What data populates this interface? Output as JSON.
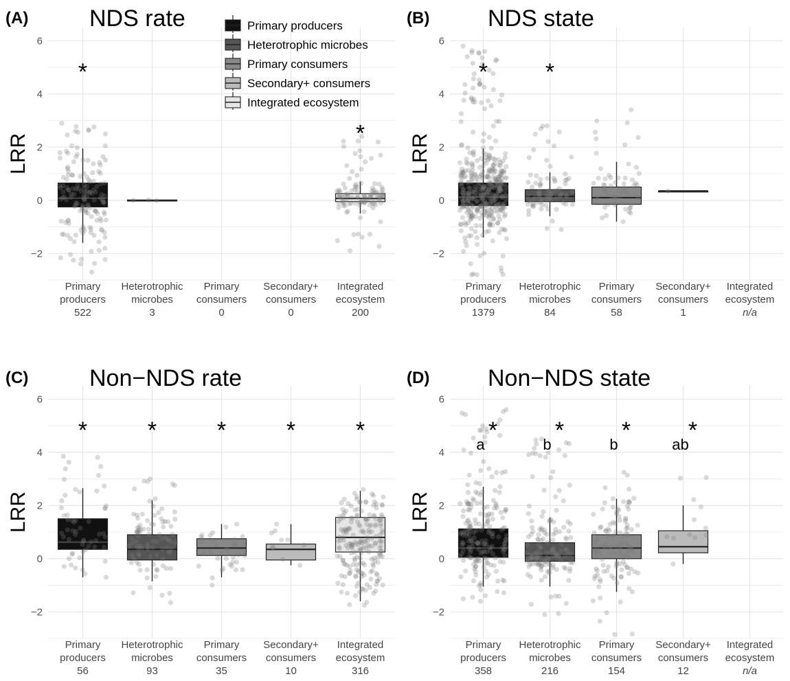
{
  "chart_data": [
    {
      "type": "box",
      "panel_letter": "(A)",
      "title": "NDS rate",
      "ylabel": "LRR",
      "ylim": [
        -3,
        6.5
      ],
      "yticks": [
        -2,
        0,
        2,
        4,
        6
      ],
      "ytick_labels": [
        "−2",
        "0",
        "2",
        "4",
        "6"
      ],
      "groups": [
        {
          "name": [
            "Primary",
            "producers"
          ],
          "count": "522",
          "has_data": true,
          "box": {
            "q1": -0.25,
            "median": 0.08,
            "q3": 0.65,
            "lower": -1.6,
            "upper": 1.95
          },
          "points_n": 150,
          "points_range": [
            -2.7,
            2.9
          ],
          "star": "*",
          "star_y": 5.1,
          "letter": ""
        },
        {
          "name": [
            "Heterotrophic",
            "microbes"
          ],
          "count": "3",
          "has_data": true,
          "box": {
            "q1": -0.01,
            "median": 0.0,
            "q3": 0.01,
            "lower": -0.01,
            "upper": 0.01
          },
          "points_n": 3,
          "points_range": [
            -0.01,
            0.01
          ],
          "star": "",
          "letter": ""
        },
        {
          "name": [
            "Primary",
            "consumers"
          ],
          "count": "0",
          "has_data": false
        },
        {
          "name": [
            "Secondary+",
            "consumers"
          ],
          "count": "0",
          "has_data": false
        },
        {
          "name": [
            "Integrated",
            "ecosystem"
          ],
          "count": "200",
          "has_data": true,
          "box": {
            "q1": -0.05,
            "median": 0.07,
            "q3": 0.25,
            "lower": -0.5,
            "upper": 0.7
          },
          "points_n": 110,
          "points_range": [
            -1.9,
            2.4
          ],
          "star": "*",
          "star_y": 2.8,
          "letter": ""
        }
      ]
    },
    {
      "type": "box",
      "panel_letter": "(B)",
      "title": "NDS state",
      "ylabel": "LRR",
      "ylim": [
        -3,
        6.5
      ],
      "yticks": [
        -2,
        0,
        2,
        4,
        6
      ],
      "ytick_labels": [
        "−2",
        "0",
        "2",
        "4",
        "6"
      ],
      "groups": [
        {
          "name": [
            "Primary",
            "producers"
          ],
          "count": "1379",
          "has_data": true,
          "box": {
            "q1": -0.2,
            "median": 0.12,
            "q3": 0.65,
            "lower": -1.4,
            "upper": 1.95
          },
          "points_n": 400,
          "points_range": [
            -2.8,
            5.8
          ],
          "star": "*",
          "star_y": 5.1,
          "letter": ""
        },
        {
          "name": [
            "Heterotrophic",
            "microbes"
          ],
          "count": "84",
          "has_data": true,
          "box": {
            "q1": -0.05,
            "median": 0.15,
            "q3": 0.4,
            "lower": -0.6,
            "upper": 1.05
          },
          "points_n": 84,
          "points_range": [
            -1.1,
            2.8
          ],
          "star": "*",
          "star_y": 5.1,
          "letter": ""
        },
        {
          "name": [
            "Primary",
            "consumers"
          ],
          "count": "58",
          "has_data": true,
          "box": {
            "q1": -0.15,
            "median": 0.1,
            "q3": 0.5,
            "lower": -0.8,
            "upper": 1.45
          },
          "points_n": 58,
          "points_range": [
            -0.8,
            3.4
          ],
          "star": "",
          "letter": ""
        },
        {
          "name": [
            "Secondary+",
            "consumers"
          ],
          "count": "1",
          "has_data": true,
          "box": {
            "q1": 0.35,
            "median": 0.35,
            "q3": 0.35,
            "lower": 0.35,
            "upper": 0.35
          },
          "points_n": 1,
          "points_range": [
            0.35,
            0.35
          ],
          "star": "",
          "letter": ""
        },
        {
          "name": [
            "Integrated",
            "ecosystem"
          ],
          "count": "n/a",
          "count_italic": true,
          "has_data": false
        }
      ]
    },
    {
      "type": "box",
      "panel_letter": "(C)",
      "title": "Non−NDS rate",
      "ylabel": "LRR",
      "ylim": [
        -3,
        6.5
      ],
      "yticks": [
        -2,
        0,
        2,
        4,
        6
      ],
      "ytick_labels": [
        "−2",
        "0",
        "2",
        "4",
        "6"
      ],
      "groups": [
        {
          "name": [
            "Primary",
            "producers"
          ],
          "count": "56",
          "has_data": true,
          "box": {
            "q1": 0.35,
            "median": 0.62,
            "q3": 1.5,
            "lower": -0.7,
            "upper": 2.65
          },
          "points_n": 56,
          "points_range": [
            -0.7,
            3.85
          ],
          "star": "*",
          "star_y": 5.1,
          "letter": ""
        },
        {
          "name": [
            "Heterotrophic",
            "microbes"
          ],
          "count": "93",
          "has_data": true,
          "box": {
            "q1": -0.05,
            "median": 0.35,
            "q3": 0.9,
            "lower": -0.85,
            "upper": 2.2
          },
          "points_n": 93,
          "points_range": [
            -1.65,
            3.0
          ],
          "star": "*",
          "star_y": 5.1,
          "letter": ""
        },
        {
          "name": [
            "Primary",
            "consumers"
          ],
          "count": "35",
          "has_data": true,
          "box": {
            "q1": 0.12,
            "median": 0.4,
            "q3": 0.75,
            "lower": -0.7,
            "upper": 1.3
          },
          "points_n": 35,
          "points_range": [
            -1.0,
            1.3
          ],
          "star": "*",
          "star_y": 5.1,
          "letter": ""
        },
        {
          "name": [
            "Secondary+",
            "consumers"
          ],
          "count": "10",
          "has_data": true,
          "box": {
            "q1": -0.05,
            "median": 0.35,
            "q3": 0.55,
            "lower": -0.25,
            "upper": 1.3
          },
          "points_n": 10,
          "points_range": [
            -0.25,
            1.3
          ],
          "star": "*",
          "star_y": 5.1,
          "letter": ""
        },
        {
          "name": [
            "Integrated",
            "ecosystem"
          ],
          "count": "316",
          "has_data": true,
          "box": {
            "q1": 0.25,
            "median": 0.8,
            "q3": 1.55,
            "lower": -1.6,
            "upper": 2.55
          },
          "points_n": 200,
          "points_range": [
            -1.75,
            2.6
          ],
          "star": "*",
          "star_y": 5.1,
          "letter": ""
        }
      ]
    },
    {
      "type": "box",
      "panel_letter": "(D)",
      "title": "Non−NDS state",
      "ylabel": "LRR",
      "ylim": [
        -3,
        6.5
      ],
      "yticks": [
        -2,
        0,
        2,
        4,
        6
      ],
      "ytick_labels": [
        "−2",
        "0",
        "2",
        "4",
        "6"
      ],
      "groups": [
        {
          "name": [
            "Primary",
            "producers"
          ],
          "count": "358",
          "has_data": true,
          "box": {
            "q1": 0.05,
            "median": 0.4,
            "q3": 1.12,
            "lower": -1.05,
            "upper": 2.7
          },
          "points_n": 200,
          "points_range": [
            -1.6,
            5.6
          ],
          "star": "*",
          "star_y": 5.1,
          "letter": "a"
        },
        {
          "name": [
            "Heterotrophic",
            "microbes"
          ],
          "count": "216",
          "has_data": true,
          "box": {
            "q1": -0.1,
            "median": 0.12,
            "q3": 0.6,
            "lower": -1.05,
            "upper": 1.55
          },
          "points_n": 150,
          "points_range": [
            -2.1,
            4.5
          ],
          "star": "*",
          "star_y": 5.1,
          "letter": "b"
        },
        {
          "name": [
            "Primary",
            "consumers"
          ],
          "count": "154",
          "has_data": true,
          "box": {
            "q1": 0.0,
            "median": 0.4,
            "q3": 0.9,
            "lower": -1.25,
            "upper": 2.25
          },
          "points_n": 120,
          "points_range": [
            -2.85,
            3.25
          ],
          "star": "*",
          "star_y": 5.1,
          "letter": "b"
        },
        {
          "name": [
            "Secondary+",
            "consumers"
          ],
          "count": "12",
          "has_data": true,
          "box": {
            "q1": 0.22,
            "median": 0.45,
            "q3": 1.05,
            "lower": -0.2,
            "upper": 2.0
          },
          "points_n": 12,
          "points_range": [
            -0.2,
            3.05
          ],
          "star": "*",
          "star_y": 5.1,
          "letter": "ab"
        },
        {
          "name": [
            "Integrated",
            "ecosystem"
          ],
          "count": "n/a",
          "count_italic": true,
          "has_data": false
        }
      ]
    }
  ],
  "legend": {
    "placement": "top-center",
    "entries": [
      {
        "label": "Primary producers",
        "color": "#111111"
      },
      {
        "label": "Heterotrophic microbes",
        "color": "#555555"
      },
      {
        "label": "Primary consumers",
        "color": "#888888"
      },
      {
        "label": "Secondary+ consumers",
        "color": "#bbbbbb"
      },
      {
        "label": "Integrated ecosystem",
        "color": "#e6e6e6"
      }
    ]
  },
  "colors": {
    "grid": "#e4e4e4",
    "box_stroke": "#222222",
    "point": "#7a7a7a"
  }
}
